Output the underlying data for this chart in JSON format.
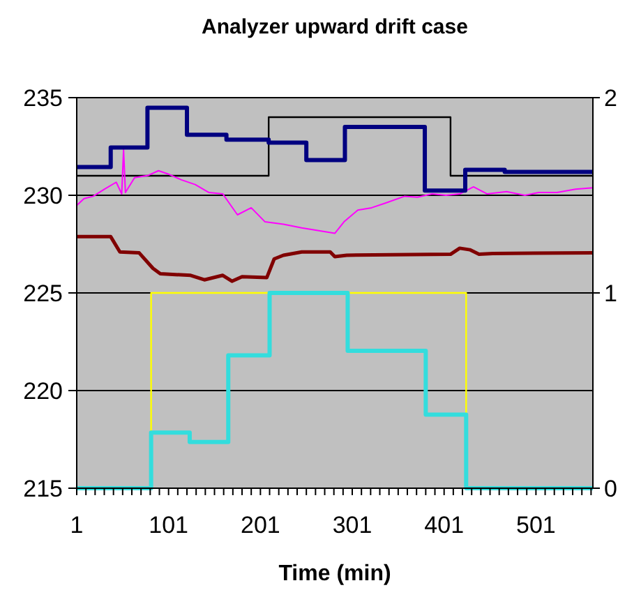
{
  "chart_data": {
    "type": "step",
    "title": "Analyzer upward drift case",
    "xlabel": "Time (min)",
    "xlim": [
      1,
      563
    ],
    "xticks": [
      1,
      {
        "value": 11,
        "label": null
      },
      {
        "value": 21,
        "label": null
      },
      {
        "value": 31,
        "label": null
      },
      {
        "value": 41,
        "label": null
      },
      {
        "value": 51,
        "label": null
      },
      {
        "value": 61,
        "label": null
      },
      {
        "value": 71,
        "label": null
      },
      {
        "value": 81,
        "label": null
      },
      {
        "value": 91,
        "label": null
      },
      101,
      {
        "value": 111,
        "label": null
      },
      {
        "value": 121,
        "label": null
      },
      {
        "value": 131,
        "label": null
      },
      {
        "value": 141,
        "label": null
      },
      {
        "value": 151,
        "label": null
      },
      {
        "value": 161,
        "label": null
      },
      {
        "value": 171,
        "label": null
      },
      {
        "value": 181,
        "label": null
      },
      {
        "value": 191,
        "label": null
      },
      201,
      {
        "value": 211,
        "label": null
      },
      {
        "value": 221,
        "label": null
      },
      {
        "value": 231,
        "label": null
      },
      {
        "value": 241,
        "label": null
      },
      {
        "value": 251,
        "label": null
      },
      {
        "value": 261,
        "label": null
      },
      {
        "value": 271,
        "label": null
      },
      {
        "value": 281,
        "label": null
      },
      {
        "value": 291,
        "label": null
      },
      301,
      {
        "value": 311,
        "label": null
      },
      {
        "value": 321,
        "label": null
      },
      {
        "value": 331,
        "label": null
      },
      {
        "value": 341,
        "label": null
      },
      {
        "value": 351,
        "label": null
      },
      {
        "value": 361,
        "label": null
      },
      {
        "value": 371,
        "label": null
      },
      {
        "value": 381,
        "label": null
      },
      {
        "value": 391,
        "label": null
      },
      401,
      {
        "value": 411,
        "label": null
      },
      {
        "value": 421,
        "label": null
      },
      {
        "value": 431,
        "label": null
      },
      {
        "value": 441,
        "label": null
      },
      {
        "value": 451,
        "label": null
      },
      {
        "value": 461,
        "label": null
      },
      {
        "value": 471,
        "label": null
      },
      {
        "value": 481,
        "label": null
      },
      {
        "value": 491,
        "label": null
      },
      501,
      {
        "value": 511,
        "label": null
      },
      {
        "value": 521,
        "label": null
      },
      {
        "value": 531,
        "label": null
      },
      {
        "value": 541,
        "label": null
      },
      {
        "value": 551,
        "label": null
      },
      {
        "value": 561,
        "label": null
      }
    ],
    "ylim": [
      215,
      235
    ],
    "yticks": [
      215,
      220,
      225,
      230,
      235
    ],
    "y2lim": [
      0,
      2
    ],
    "y2ticks": [
      0,
      1,
      2
    ],
    "grid": "y",
    "series": [
      {
        "color": "#000000",
        "x": [
          1,
          210,
          408,
          563
        ],
        "values": [
          231.0,
          234.0,
          231.0,
          231.0
        ]
      },
      {
        "color": "#000080",
        "x": [
          1,
          38,
          78,
          121,
          164,
          210,
          251,
          293,
          380,
          424,
          467,
          563
        ],
        "values": [
          231.45,
          232.45,
          234.48,
          233.1,
          232.85,
          232.7,
          231.8,
          233.5,
          230.24,
          231.3,
          231.2,
          231.2
        ]
      },
      {
        "type": "line",
        "color": "#ff00ff",
        "x": [
          1,
          9,
          19,
          31,
          44,
          50,
          52,
          54,
          64,
          79,
          90,
          100,
          115,
          130,
          145,
          160,
          176,
          191,
          206,
          226,
          246,
          267,
          282,
          292,
          307,
          322,
          337,
          358,
          372,
          388,
          403,
          418,
          433,
          448,
          469,
          489,
          504,
          524,
          544,
          563
        ],
        "values": [
          229.48,
          229.83,
          229.95,
          230.31,
          230.67,
          230.07,
          232.33,
          230.14,
          230.9,
          231.02,
          231.26,
          231.1,
          230.79,
          230.55,
          230.14,
          230.07,
          229.0,
          229.36,
          228.64,
          228.52,
          228.33,
          228.17,
          228.05,
          228.64,
          229.24,
          229.36,
          229.6,
          229.95,
          229.9,
          230.07,
          230.0,
          230.07,
          230.43,
          230.07,
          230.19,
          230.0,
          230.14,
          230.14,
          230.31,
          230.38
        ]
      },
      {
        "type": "line",
        "color": "#800000",
        "x": [
          1,
          38,
          48,
          69,
          84,
          92,
          125,
          140,
          160,
          170,
          181,
          208,
          216,
          226,
          246,
          277,
          282,
          295,
          408,
          418,
          429,
          439,
          454,
          563
        ],
        "values": [
          227.88,
          227.88,
          227.1,
          227.05,
          226.26,
          225.98,
          225.9,
          225.67,
          225.9,
          225.6,
          225.83,
          225.79,
          226.74,
          226.93,
          227.1,
          227.1,
          226.86,
          226.93,
          226.98,
          227.29,
          227.21,
          226.98,
          227.02,
          227.05
        ]
      },
      {
        "color": "#ffff00",
        "axis": "y2",
        "x": [
          1,
          82,
          425,
          563
        ],
        "values": [
          0,
          1,
          0,
          0
        ]
      },
      {
        "color": "#33dddd",
        "x": [
          1,
          82,
          124,
          166,
          211,
          296,
          381,
          425,
          563
        ],
        "values": [
          215,
          217.85,
          217.37,
          221.8,
          225,
          222.04,
          218.77,
          215,
          215
        ]
      }
    ]
  }
}
